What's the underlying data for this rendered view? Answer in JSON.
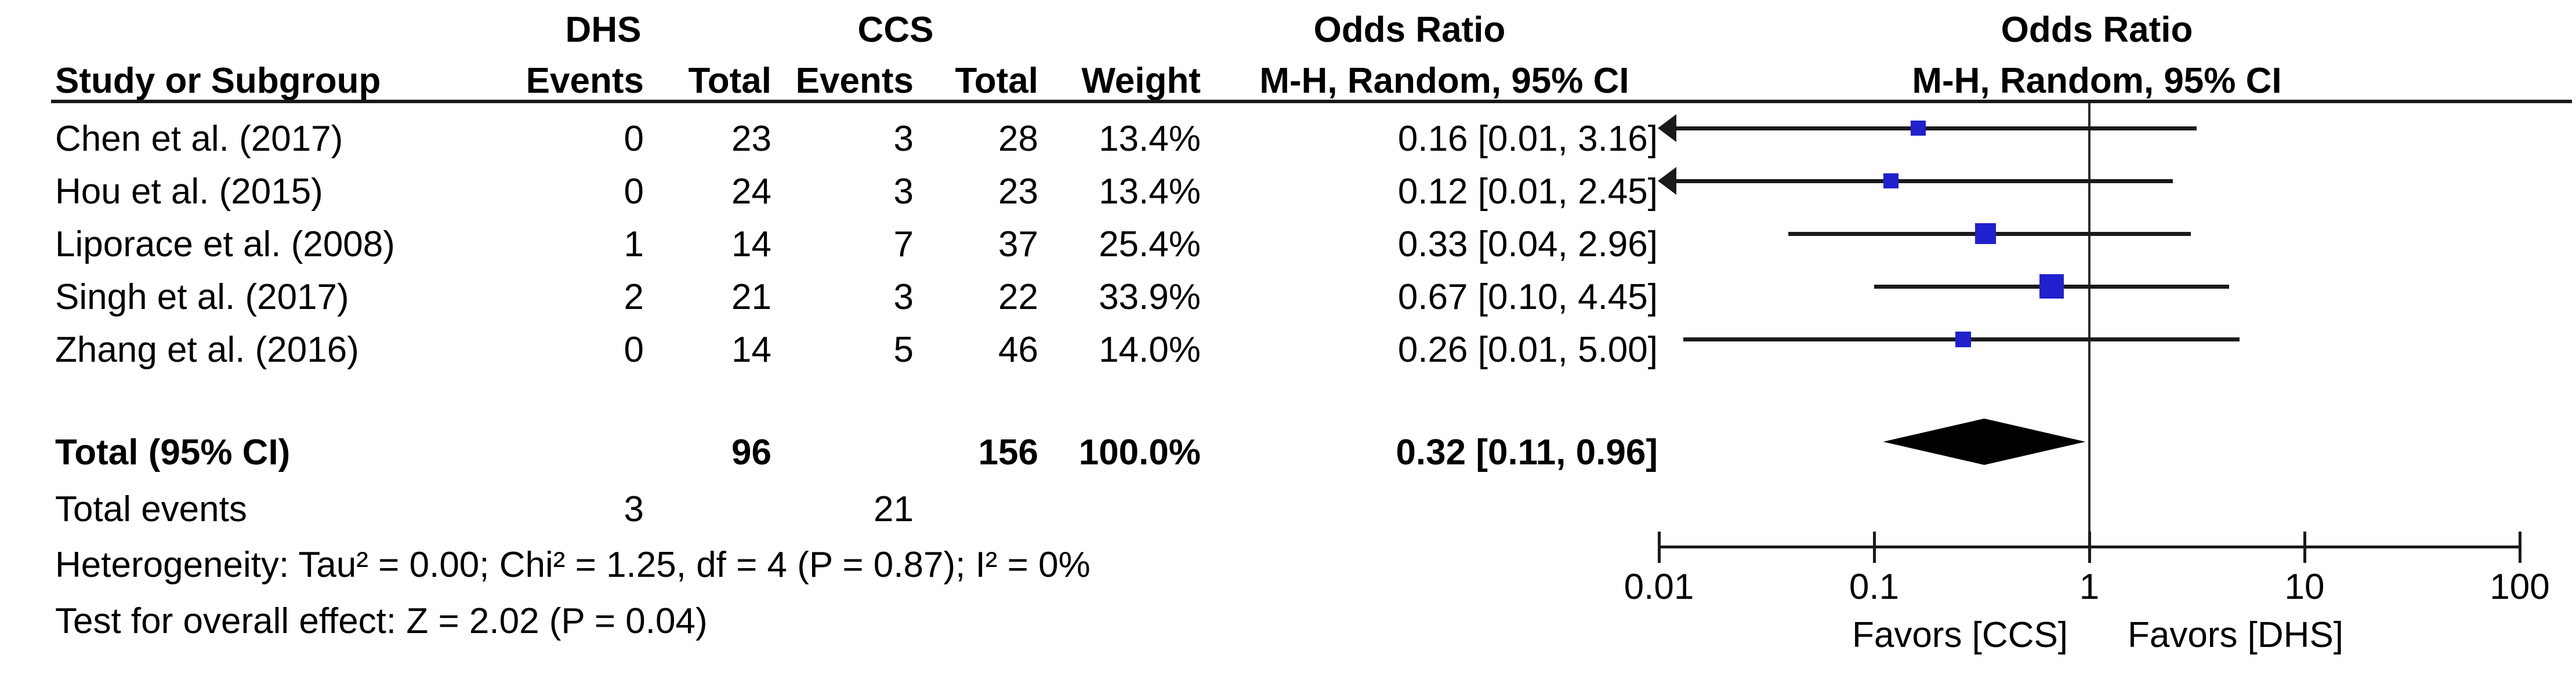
{
  "header": {
    "group_dhs": "DHS",
    "group_ccs": "CCS",
    "group_or_left": "Odds Ratio",
    "group_or_right": "Odds Ratio",
    "col_study": "Study or Subgroup",
    "col_events": "Events",
    "col_total": "Total",
    "col_weight": "Weight",
    "col_mh": "M-H, Random, 95% CI"
  },
  "studies": [
    {
      "label": "Chen et al. (2017)",
      "dhs_events": "0",
      "dhs_total": "23",
      "ccs_events": "3",
      "ccs_total": "28",
      "weight": "13.4%",
      "or_ci": "0.16 [0.01, 3.16]"
    },
    {
      "label": "Hou et al. (2015)",
      "dhs_events": "0",
      "dhs_total": "24",
      "ccs_events": "3",
      "ccs_total": "23",
      "weight": "13.4%",
      "or_ci": "0.12 [0.01, 2.45]"
    },
    {
      "label": "Liporace et al. (2008)",
      "dhs_events": "1",
      "dhs_total": "14",
      "ccs_events": "7",
      "ccs_total": "37",
      "weight": "25.4%",
      "or_ci": "0.33 [0.04, 2.96]"
    },
    {
      "label": "Singh et al. (2017)",
      "dhs_events": "2",
      "dhs_total": "21",
      "ccs_events": "3",
      "ccs_total": "22",
      "weight": "33.9%",
      "or_ci": "0.67 [0.10, 4.45]"
    },
    {
      "label": "Zhang et al. (2016)",
      "dhs_events": "0",
      "dhs_total": "14",
      "ccs_events": "5",
      "ccs_total": "46",
      "weight": "14.0%",
      "or_ci": "0.26 [0.01, 5.00]"
    }
  ],
  "total_row": {
    "label": "Total (95% CI)",
    "dhs_total": "96",
    "ccs_total": "156",
    "weight": "100.0%",
    "or_ci": "0.32 [0.11, 0.96]"
  },
  "total_events": {
    "label": "Total events",
    "dhs": "3",
    "ccs": "21"
  },
  "footnotes": {
    "heterogeneity": "Heterogeneity: Tau² = 0.00; Chi² = 1.25, df = 4 (P = 0.87); I² = 0%",
    "overall_effect": "Test for overall effect: Z = 2.02 (P = 0.04)"
  },
  "axis": {
    "tick_labels": [
      "0.01",
      "0.1",
      "1",
      "10",
      "100"
    ],
    "favors_left": "Favors [CCS]",
    "favors_right": "Favors [DHS]"
  },
  "colors": {
    "square": "#2020CE",
    "diamond": "#000000",
    "line": "#1a1a1a",
    "text": "#000000",
    "background": "#ffffff"
  },
  "chart_data": {
    "type": "scatter",
    "subtype": "forest_plot_odds_ratio",
    "effect_measure": "Odds Ratio, M-H, Random, 95% CI",
    "x_scale": "log10",
    "x_range": [
      0.01,
      100
    ],
    "x_ticks": [
      0.01,
      0.1,
      1,
      10,
      100
    ],
    "null_line_x": 1,
    "grid": false,
    "legend_position": "none",
    "series": [
      {
        "name": "Chen et al. (2017)",
        "or": 0.16,
        "ci_low": 0.01,
        "ci_high": 3.16,
        "weight_pct": 13.4,
        "arrow_low": true
      },
      {
        "name": "Hou et al. (2015)",
        "or": 0.12,
        "ci_low": 0.01,
        "ci_high": 2.45,
        "weight_pct": 13.4,
        "arrow_low": true
      },
      {
        "name": "Liporace et al. (2008)",
        "or": 0.33,
        "ci_low": 0.04,
        "ci_high": 2.96,
        "weight_pct": 25.4,
        "arrow_low": false
      },
      {
        "name": "Singh et al. (2017)",
        "or": 0.67,
        "ci_low": 0.1,
        "ci_high": 4.45,
        "weight_pct": 33.9,
        "arrow_low": false
      },
      {
        "name": "Zhang et al. (2016)",
        "or": 0.26,
        "ci_low": 0.01,
        "ci_high": 5.0,
        "weight_pct": 14.0,
        "arrow_low": false,
        "plot_ci_low": 0.013
      }
    ],
    "pooled": {
      "name": "Total (95% CI)",
      "or": 0.32,
      "ci_low": 0.11,
      "ci_high": 0.96
    },
    "xlabel_left": "Favors [CCS]",
    "xlabel_right": "Favors [DHS]"
  }
}
